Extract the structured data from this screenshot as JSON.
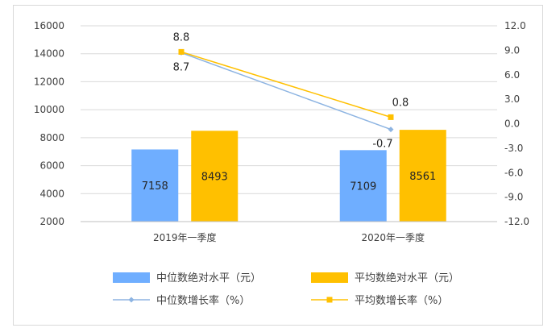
{
  "chart_data": {
    "type": "bar",
    "categories": [
      "2019年一季度",
      "2020年一季度"
    ],
    "series": [
      {
        "name": "中位数绝对水平（元）",
        "kind": "bar",
        "axis": "left",
        "color": "#6faeff",
        "values": [
          7158,
          7109
        ]
      },
      {
        "name": "平均数绝对水平（元）",
        "kind": "bar",
        "axis": "left",
        "color": "#ffc000",
        "values": [
          8493,
          8561
        ]
      },
      {
        "name": "中位数增长率（%）",
        "kind": "line",
        "axis": "right",
        "color": "#8db4e2",
        "values": [
          8.7,
          -0.7
        ]
      },
      {
        "name": "平均数增长率（%）",
        "kind": "line",
        "axis": "right",
        "color": "#ffc000",
        "values": [
          8.8,
          0.8
        ]
      }
    ],
    "bar_labels": [
      [
        "7158",
        "7109"
      ],
      [
        "8493",
        "8561"
      ]
    ],
    "line_labels": [
      [
        "8.7",
        "-0.7"
      ],
      [
        "8.8",
        "0.8"
      ]
    ],
    "y_left": {
      "ticks": [
        "2000",
        "4000",
        "6000",
        "8000",
        "10000",
        "12000",
        "14000",
        "16000"
      ],
      "min": 2000,
      "max": 16000
    },
    "y_right": {
      "ticks": [
        "-12.0",
        "-9.0",
        "-6.0",
        "-3.0",
        "0.0",
        "3.0",
        "6.0",
        "9.0",
        "12.0"
      ],
      "min": -12,
      "max": 12
    },
    "grid": true,
    "legend_position": "bottom"
  }
}
